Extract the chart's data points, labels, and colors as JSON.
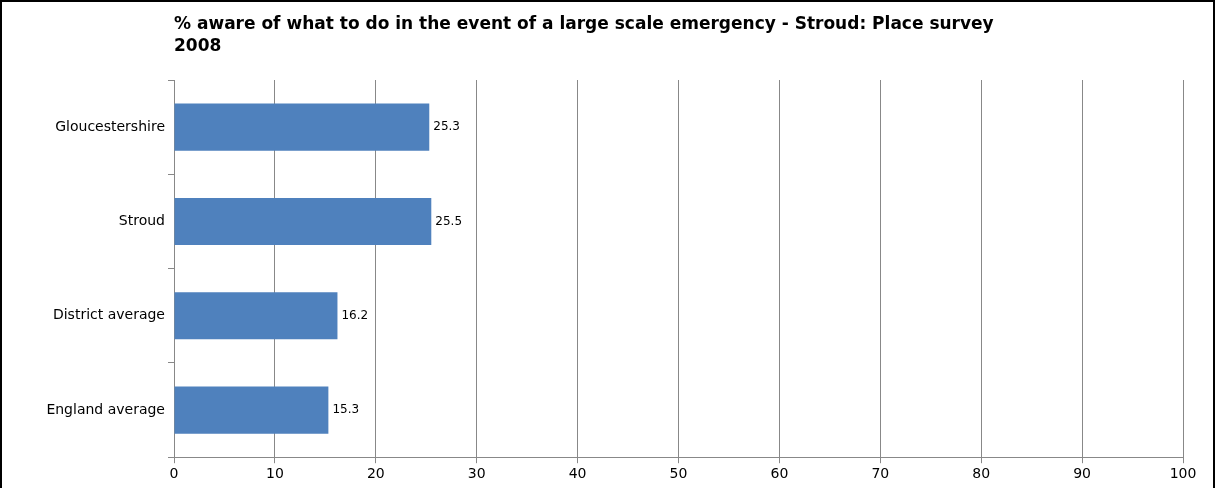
{
  "chart_data": {
    "type": "bar",
    "orientation": "horizontal",
    "title": "%  aware of what to do in the event of a large scale emergency - Stroud: Place survey 2008",
    "categories": [
      "Gloucestershire",
      "Stroud",
      "District average",
      "England average"
    ],
    "values": [
      25.3,
      25.5,
      16.2,
      15.3
    ],
    "color": "#4f81bd",
    "xlim": [
      0,
      100
    ],
    "xticks": [
      0,
      10,
      20,
      30,
      40,
      50,
      60,
      70,
      80,
      90,
      100
    ],
    "grid": "x",
    "legend": false,
    "data_labels": true
  }
}
